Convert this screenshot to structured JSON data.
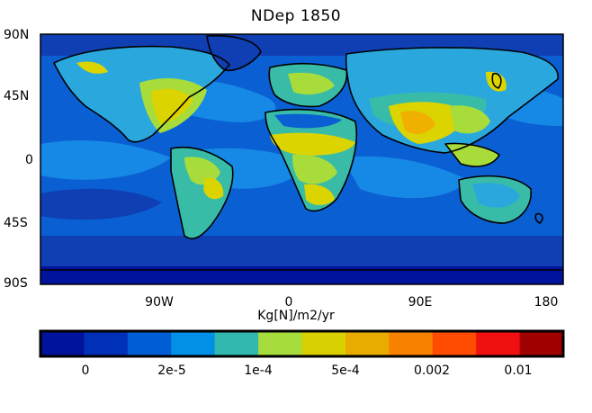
{
  "title": "NDep  1850",
  "lat_labels": [
    "90N",
    "45N",
    "0",
    "45S",
    "90S"
  ],
  "lon_labels": [
    "90W",
    "0",
    "90E",
    "180"
  ],
  "colorbar": {
    "unit": "Kg[N]/m2/yr",
    "tick_labels": [
      "0",
      "2e-5",
      "1e-4",
      "5e-4",
      "0.002",
      "0.01"
    ],
    "colors": [
      "#00139a",
      "#0030b8",
      "#005ed4",
      "#0090e8",
      "#33b8b0",
      "#a6dc3c",
      "#d8d000",
      "#e8ac00",
      "#f88200",
      "#ff4c00",
      "#f01010",
      "#a00000"
    ]
  },
  "palette": {
    "ocean_deep": "#0f3fb2",
    "ocean_mid": "#0a5fd3",
    "ocean_band": "#1688e6",
    "land_low": "#2aa8de",
    "land_mid": "#38bca8",
    "land_high": "#a8dc3a",
    "land_peak": "#dcd400",
    "land_max": "#f0b000",
    "coast": "#000000"
  }
}
